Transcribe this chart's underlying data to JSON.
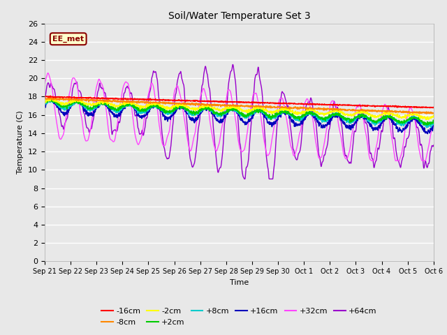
{
  "title": "Soil/Water Temperature Set 3",
  "xlabel": "Time",
  "ylabel": "Temperature (C)",
  "ylim": [
    0,
    26
  ],
  "yticks": [
    0,
    2,
    4,
    6,
    8,
    10,
    12,
    14,
    16,
    18,
    20,
    22,
    24,
    26
  ],
  "bg_color": "#e8e8e8",
  "plot_bg_color": "#e8e8e8",
  "annotation_text": "EE_met",
  "annotation_bg": "#ffffcc",
  "annotation_border": "#8b0000",
  "annotation_text_color": "#8b0000",
  "series": {
    "-16cm": {
      "color": "#ff0000",
      "lw": 1.2
    },
    "-8cm": {
      "color": "#ff8800",
      "lw": 1.2
    },
    "-2cm": {
      "color": "#ffff00",
      "lw": 1.2
    },
    "+2cm": {
      "color": "#00cc00",
      "lw": 1.2
    },
    "+8cm": {
      "color": "#00cccc",
      "lw": 1.2
    },
    "+16cm": {
      "color": "#0000bb",
      "lw": 1.2
    },
    "+32cm": {
      "color": "#ff44ff",
      "lw": 1.0
    },
    "+64cm": {
      "color": "#9900cc",
      "lw": 1.0
    }
  },
  "n_days": 15,
  "x_labels": [
    "Sep 21",
    "Sep 22",
    "Sep 23",
    "Sep 24",
    "Sep 25",
    "Sep 26",
    "Sep 27",
    "Sep 28",
    "Sep 29",
    "Sep 30",
    "Oct 1",
    "Oct 2",
    "Oct 3",
    "Oct 4",
    "Oct 5",
    "Oct 6"
  ]
}
